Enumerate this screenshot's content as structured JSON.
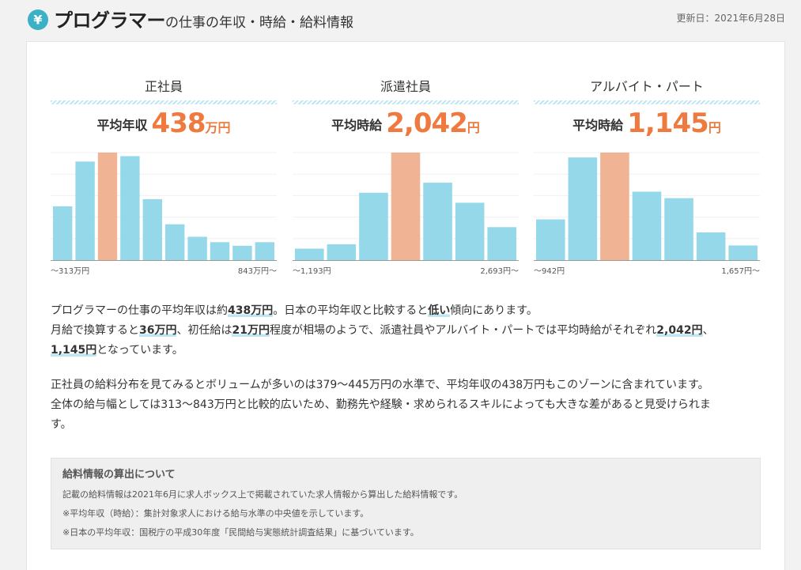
{
  "header": {
    "title_main": "プログラマー",
    "title_sub": "の仕事の年収・時給・給料情報",
    "updated": "更新日：2021年6月28日"
  },
  "panels": [
    {
      "title": "正社員",
      "avg_label": "平均年収",
      "avg_value": "438",
      "avg_unit": "万円",
      "range_min": "〜313万円",
      "range_max": "843万円〜"
    },
    {
      "title": "派遣社員",
      "avg_label": "平均時給",
      "avg_value": "2,042",
      "avg_unit": "円",
      "range_min": "〜1,193円",
      "range_max": "2,693円〜"
    },
    {
      "title": "アルバイト・パート",
      "avg_label": "平均時給",
      "avg_value": "1,145",
      "avg_unit": "円",
      "range_min": "〜942円",
      "range_max": "1,657円〜"
    }
  ],
  "chart_data": [
    {
      "type": "bar",
      "title": "正社員",
      "bin_labels": [
        "〜313万円",
        "843万円〜"
      ],
      "values": [
        30,
        55,
        60,
        58,
        34,
        20,
        13,
        10,
        8,
        10
      ],
      "highlight_index": 2,
      "ylim": [
        0,
        60
      ]
    },
    {
      "type": "bar",
      "title": "派遣社員",
      "bin_labels": [
        "〜1,193円",
        "2,693円〜"
      ],
      "values": [
        8,
        11,
        47,
        75,
        54,
        40,
        23
      ],
      "highlight_index": 3,
      "ylim": [
        0,
        75
      ]
    },
    {
      "type": "bar",
      "title": "アルバイト・パート",
      "bin_labels": [
        "〜942円",
        "1,657円〜"
      ],
      "values": [
        25,
        63,
        66,
        42,
        38,
        17,
        9
      ],
      "highlight_index": 2,
      "ylim": [
        0,
        66
      ]
    }
  ],
  "colors": {
    "bar": "#94d8e9",
    "bar_highlight": "#f0b394",
    "accent": "#ee7a3f",
    "grid": "#f0f0f0",
    "icon": "#3bb1c6"
  },
  "summary": {
    "p1_l1_a": "プログラマーの仕事の平均年収は約",
    "p1_l1_b": "438万円",
    "p1_l1_c": "。日本の平均年収と比較すると",
    "p1_l1_d": "低い",
    "p1_l1_e": "傾向にあります。",
    "p1_l2_a": "月給で換算すると",
    "p1_l2_b": "36万円",
    "p1_l2_c": "、初任給は",
    "p1_l2_d": "21万円",
    "p1_l2_e": "程度が相場のようで、派遣社員やアルバイト・パートでは平均時給がそれぞれ",
    "p1_l2_f": "2,042円",
    "p1_l2_g": "、",
    "p1_l3_a": "1,145円",
    "p1_l3_b": "となっています。",
    "p2_l1": "正社員の給料分布を見てみるとボリュームが多いのは379〜445万円の水準で、平均年収の438万円もこのゾーンに含まれています。",
    "p2_l2": "全体の給与幅としては313〜843万円と比較的広いため、勤務先や経験・求められるスキルによっても大きな差があると見受けられま",
    "p2_l3": "す。"
  },
  "note": {
    "title": "給料情報の算出について",
    "line1": "記載の給料情報は2021年6月に求人ボックス上で掲載されていた求人情報から算出した給料情報です。",
    "line2": "※平均年収（時給）：集計対象求人における給与水準の中央値を示しています。",
    "line3": "※日本の平均年収：国税庁の平成30年度「民間給与実態統計調査結果」に基づいています。"
  }
}
